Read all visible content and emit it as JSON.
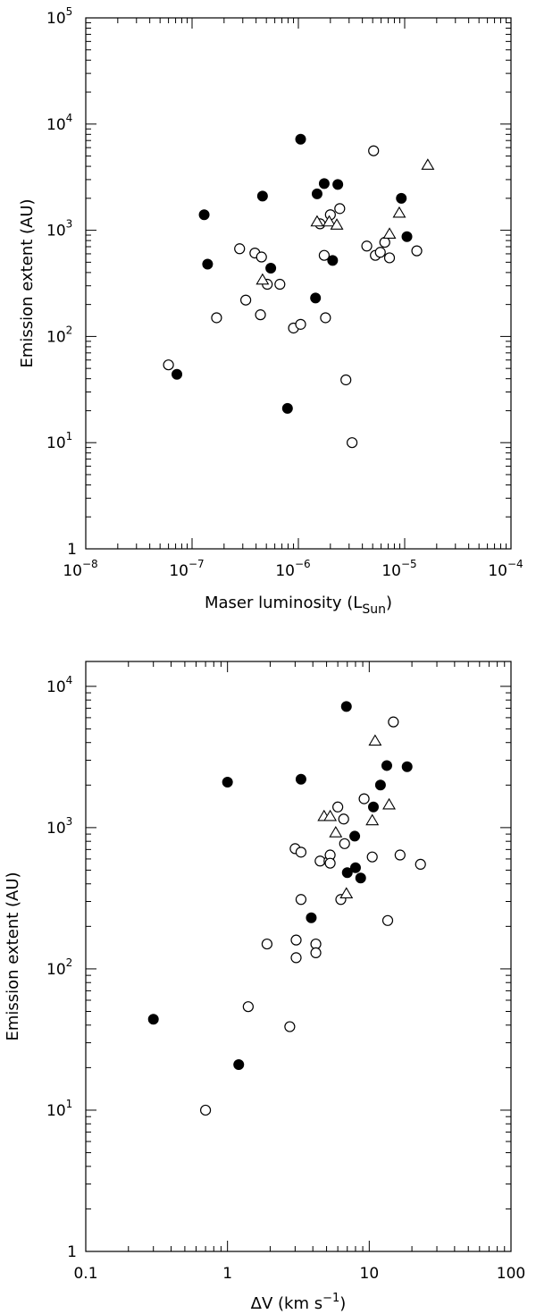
{
  "chart_data": [
    {
      "type": "scatter",
      "xlabel": "Maser luminosity (L",
      "xlabel_sub": "Sun",
      "xlabel_close": ")",
      "ylabel": "Emission extent (AU)",
      "xscale": "log",
      "yscale": "log",
      "xlim": [
        1e-08,
        0.0001
      ],
      "ylim": [
        1,
        100000
      ],
      "x_ticks": [
        {
          "base": "10",
          "exp": "−8"
        },
        {
          "base": "10",
          "exp": "−7"
        },
        {
          "base": "10",
          "exp": "−6"
        },
        {
          "base": "10",
          "exp": "−5"
        },
        {
          "base": "10",
          "exp": "−4"
        }
      ],
      "y_ticks": [
        {
          "base": "1",
          "exp": ""
        },
        {
          "base": "10",
          "exp": "1"
        },
        {
          "base": "10",
          "exp": "2"
        },
        {
          "base": "10",
          "exp": "3"
        },
        {
          "base": "10",
          "exp": "4"
        },
        {
          "base": "10",
          "exp": "5"
        }
      ],
      "grid": false,
      "series": [
        {
          "marker": "filled-circle",
          "points": [
            [
              7.2e-08,
              44
            ],
            [
              1.3e-07,
              1400
            ],
            [
              1.4e-07,
              480
            ],
            [
              4.6e-07,
              2100
            ],
            [
              5.5e-07,
              440
            ],
            [
              7.9e-07,
              21
            ],
            [
              1.05e-06,
              7200
            ],
            [
              1.45e-06,
              230
            ],
            [
              1.5e-06,
              2200
            ],
            [
              1.75e-06,
              2750
            ],
            [
              2.1e-06,
              520
            ],
            [
              2.35e-06,
              2700
            ],
            [
              9.3e-06,
              2000
            ],
            [
              1.05e-05,
              870
            ]
          ]
        },
        {
          "marker": "open-circle",
          "points": [
            [
              6e-08,
              54
            ],
            [
              1.7e-07,
              150
            ],
            [
              2.8e-07,
              670
            ],
            [
              3.2e-07,
              220
            ],
            [
              3.9e-07,
              610
            ],
            [
              4.4e-07,
              160
            ],
            [
              4.5e-07,
              560
            ],
            [
              5.1e-07,
              310
            ],
            [
              6.7e-07,
              310
            ],
            [
              9e-07,
              120
            ],
            [
              1.05e-06,
              130
            ],
            [
              1.6e-06,
              1150
            ],
            [
              1.75e-06,
              580
            ],
            [
              1.8e-06,
              150
            ],
            [
              2e-06,
              1400
            ],
            [
              2.45e-06,
              1600
            ],
            [
              2.8e-06,
              39
            ],
            [
              3.2e-06,
              10
            ],
            [
              4.4e-06,
              710
            ],
            [
              5.1e-06,
              5600
            ],
            [
              5.3e-06,
              580
            ],
            [
              5.9e-06,
              620
            ],
            [
              6.5e-06,
              770
            ],
            [
              7.2e-06,
              550
            ],
            [
              1.3e-05,
              640
            ]
          ]
        },
        {
          "marker": "open-triangle",
          "points": [
            [
              4.6e-07,
              340
            ],
            [
              1.5e-06,
              1200
            ],
            [
              1.95e-06,
              1200
            ],
            [
              2.3e-06,
              1120
            ],
            [
              7.2e-06,
              920
            ],
            [
              8.9e-06,
              1450
            ],
            [
              1.65e-05,
              4100
            ]
          ]
        }
      ]
    },
    {
      "type": "scatter",
      "xlabel": "ΔV (km s",
      "xlabel_sup": "−1",
      "xlabel_close": ")",
      "ylabel": "Emission extent (AU)",
      "xscale": "log",
      "yscale": "log",
      "xlim": [
        0.1,
        100
      ],
      "ylim": [
        1,
        15000
      ],
      "x_ticks": [
        {
          "base": "0.1",
          "exp": ""
        },
        {
          "base": "1",
          "exp": ""
        },
        {
          "base": "10",
          "exp": ""
        },
        {
          "base": "100",
          "exp": ""
        }
      ],
      "y_ticks": [
        {
          "base": "1",
          "exp": ""
        },
        {
          "base": "10",
          "exp": "1"
        },
        {
          "base": "10",
          "exp": "2"
        },
        {
          "base": "10",
          "exp": "3"
        },
        {
          "base": "10",
          "exp": "4"
        }
      ],
      "grid": false,
      "series": [
        {
          "marker": "filled-circle",
          "points": [
            [
              0.3,
              44
            ],
            [
              1.0,
              2100
            ],
            [
              1.2,
              21
            ],
            [
              3.3,
              2200
            ],
            [
              3.9,
              230
            ],
            [
              6.9,
              7200
            ],
            [
              7.0,
              480
            ],
            [
              7.9,
              870
            ],
            [
              8.0,
              520
            ],
            [
              8.7,
              440
            ],
            [
              10.7,
              1400
            ],
            [
              12.0,
              2000
            ],
            [
              13.3,
              2750
            ],
            [
              18.5,
              2700
            ]
          ]
        },
        {
          "marker": "open-circle",
          "points": [
            [
              0.7,
              10
            ],
            [
              1.4,
              54
            ],
            [
              1.9,
              150
            ],
            [
              2.75,
              39
            ],
            [
              3.0,
              710
            ],
            [
              3.05,
              160
            ],
            [
              3.05,
              120
            ],
            [
              3.3,
              670
            ],
            [
              3.3,
              310
            ],
            [
              4.2,
              150
            ],
            [
              4.2,
              130
            ],
            [
              4.5,
              580
            ],
            [
              5.2,
              580
            ],
            [
              5.3,
              640
            ],
            [
              5.3,
              560
            ],
            [
              6.0,
              1400
            ],
            [
              6.3,
              310
            ],
            [
              6.6,
              1150
            ],
            [
              6.7,
              770
            ],
            [
              9.2,
              1600
            ],
            [
              10.5,
              620
            ],
            [
              13.5,
              220
            ],
            [
              14.8,
              5600
            ],
            [
              16.5,
              640
            ],
            [
              23.0,
              550
            ]
          ]
        },
        {
          "marker": "open-triangle",
          "points": [
            [
              4.8,
              1200
            ],
            [
              5.3,
              1200
            ],
            [
              5.8,
              920
            ],
            [
              6.9,
              340
            ],
            [
              10.5,
              1120
            ],
            [
              11.0,
              4100
            ],
            [
              13.8,
              1450
            ]
          ]
        }
      ]
    }
  ]
}
